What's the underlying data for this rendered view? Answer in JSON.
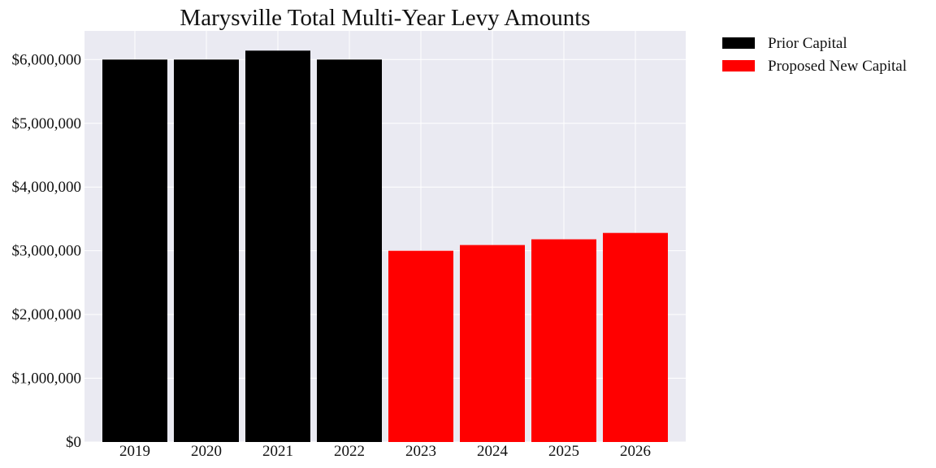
{
  "chart_data": {
    "type": "bar",
    "title": "Marysville Total Multi-Year Levy Amounts",
    "xlabel": "",
    "ylabel": "",
    "categories": [
      "2019",
      "2020",
      "2021",
      "2022",
      "2023",
      "2024",
      "2025",
      "2026"
    ],
    "series": [
      {
        "name": "Prior Capital",
        "color": "#000000",
        "values": [
          6000000,
          6000000,
          6140000,
          6000000,
          null,
          null,
          null,
          null
        ]
      },
      {
        "name": "Proposed New Capital",
        "color": "#ff0000",
        "values": [
          null,
          null,
          null,
          null,
          3000000,
          3090000,
          3180000,
          3280000
        ]
      }
    ],
    "ylim": [
      0,
      6450000
    ],
    "yticks": [
      0,
      1000000,
      2000000,
      3000000,
      4000000,
      5000000,
      6000000
    ],
    "ytick_labels": [
      "$0",
      "$1,000,000",
      "$2,000,000",
      "$3,000,000",
      "$4,000,000",
      "$5,000,000",
      "$6,000,000"
    ],
    "grid": true,
    "legend_position": "outside-top-right",
    "plot_background": "#eaeaf2"
  }
}
